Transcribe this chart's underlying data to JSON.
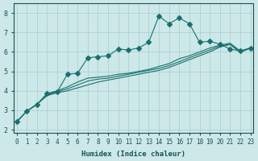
{
  "xlabel": "Humidex (Indice chaleur)",
  "ylabel": "",
  "background_color": "#cce8e8",
  "grid_color": "#aacccc",
  "line_color": "#1a7070",
  "xlim": [
    0,
    23
  ],
  "ylim": [
    2,
    8.5
  ],
  "xticks": [
    0,
    1,
    2,
    3,
    4,
    5,
    6,
    7,
    8,
    9,
    10,
    11,
    12,
    13,
    14,
    15,
    16,
    17,
    18,
    19,
    20,
    21,
    22,
    23
  ],
  "yticks": [
    2,
    3,
    4,
    5,
    6,
    7,
    8
  ],
  "series": [
    {
      "x": [
        0,
        1,
        2,
        3,
        4,
        5,
        6,
        7,
        8,
        9,
        10,
        11,
        12,
        13,
        14,
        15,
        16,
        17,
        18,
        19,
        20,
        21,
        22,
        23
      ],
      "y": [
        2.4,
        2.95,
        3.3,
        3.85,
        3.95,
        4.85,
        4.9,
        5.7,
        5.75,
        5.8,
        6.15,
        6.1,
        6.2,
        6.5,
        7.85,
        7.45,
        7.75,
        7.45,
        6.5,
        6.55,
        6.4,
        6.15,
        6.05,
        6.2
      ],
      "marker": "D",
      "markersize": 3
    },
    {
      "x": [
        0,
        1,
        2,
        3,
        4,
        5,
        6,
        7,
        8,
        9,
        10,
        11,
        12,
        13,
        14,
        15,
        16,
        17,
        18,
        19,
        20,
        21,
        22,
        23
      ],
      "y": [
        2.4,
        2.95,
        3.3,
        3.85,
        4.0,
        4.2,
        4.45,
        4.65,
        4.7,
        4.75,
        4.85,
        4.9,
        5.0,
        5.1,
        5.25,
        5.4,
        5.65,
        5.8,
        6.0,
        6.2,
        6.35,
        6.45,
        6.05,
        6.2
      ],
      "marker": null,
      "markersize": 0
    },
    {
      "x": [
        0,
        1,
        2,
        3,
        4,
        5,
        6,
        7,
        8,
        9,
        10,
        11,
        12,
        13,
        14,
        15,
        16,
        17,
        18,
        19,
        20,
        21,
        22,
        23
      ],
      "y": [
        2.4,
        2.95,
        3.3,
        3.8,
        3.95,
        4.1,
        4.3,
        4.5,
        4.6,
        4.65,
        4.75,
        4.85,
        4.95,
        5.05,
        5.15,
        5.3,
        5.5,
        5.7,
        5.9,
        6.1,
        6.3,
        6.4,
        6.0,
        6.2
      ],
      "marker": null,
      "markersize": 0
    },
    {
      "x": [
        0,
        1,
        2,
        3,
        4,
        5,
        6,
        7,
        8,
        9,
        10,
        11,
        12,
        13,
        14,
        15,
        16,
        17,
        18,
        19,
        20,
        21,
        22,
        23
      ],
      "y": [
        2.4,
        2.95,
        3.3,
        3.75,
        3.9,
        4.0,
        4.15,
        4.3,
        4.45,
        4.55,
        4.65,
        4.75,
        4.85,
        4.95,
        5.05,
        5.2,
        5.4,
        5.6,
        5.8,
        6.0,
        6.25,
        6.38,
        5.98,
        6.2
      ],
      "marker": null,
      "markersize": 0
    }
  ]
}
